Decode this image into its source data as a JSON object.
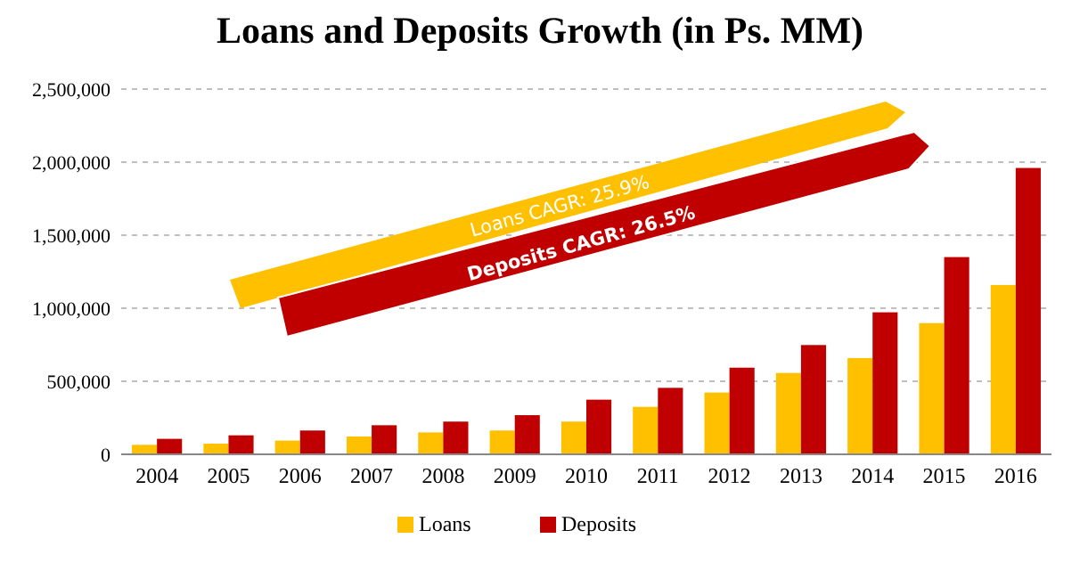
{
  "chart_data": {
    "type": "bar",
    "title": "Loans and Deposits Growth (in Ps. MM)",
    "categories": [
      "2004",
      "2005",
      "2006",
      "2007",
      "2008",
      "2009",
      "2010",
      "2011",
      "2012",
      "2013",
      "2014",
      "2015",
      "2016"
    ],
    "series": [
      {
        "name": "Loans",
        "color": "#ffc000",
        "values": [
          65000,
          73000,
          94000,
          122000,
          150000,
          163000,
          224000,
          325000,
          423000,
          557000,
          659000,
          898000,
          1159000
        ]
      },
      {
        "name": "Deposits",
        "color": "#c00000",
        "values": [
          106000,
          130000,
          163000,
          199000,
          224000,
          268000,
          374000,
          455000,
          593000,
          748000,
          972000,
          1350000,
          1960000
        ]
      }
    ],
    "ylim": [
      0,
      2500000
    ],
    "yticks": [
      {
        "value": 0,
        "label": "0"
      },
      {
        "value": 500000,
        "label": "500,000"
      },
      {
        "value": 1000000,
        "label": "1,000,000"
      },
      {
        "value": 1500000,
        "label": "1,500,000"
      },
      {
        "value": 2000000,
        "label": "2,000,000"
      },
      {
        "value": 2500000,
        "label": "2,500,000"
      }
    ],
    "grid": "y",
    "legend": "bottom",
    "annotations": [
      "Loans CAGR: 25.9%",
      "Deposits CAGR: 26.5%"
    ]
  }
}
